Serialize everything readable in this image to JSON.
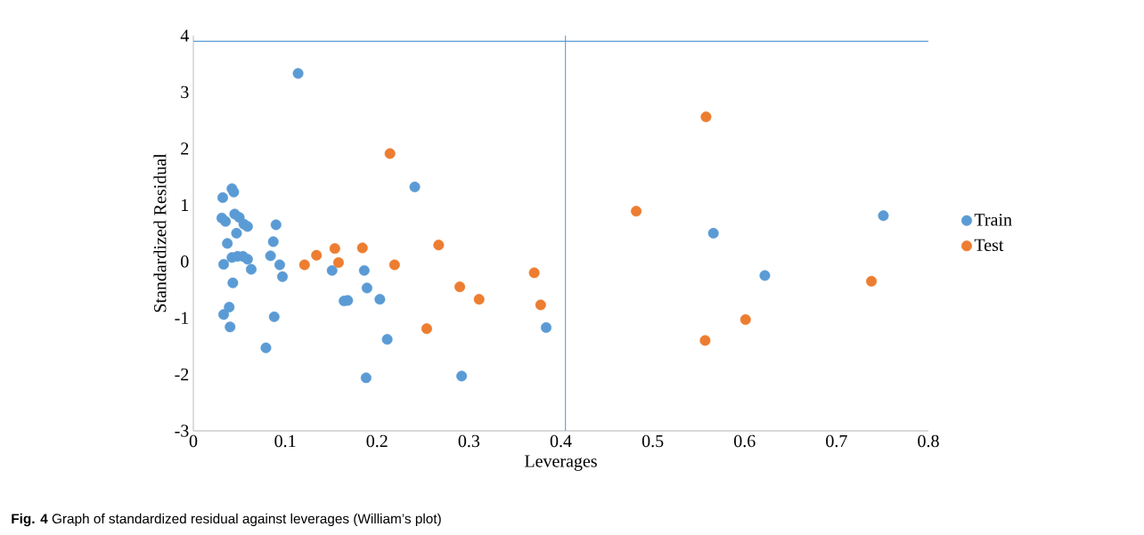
{
  "chart_data": {
    "type": "scatter",
    "xlabel": "Leverages",
    "ylabel": "Standardized Residual",
    "legend": "right",
    "grid": false,
    "xlim": [
      0,
      0.8
    ],
    "ylim": [
      -3,
      4
    ],
    "xticks": [
      0,
      0.1,
      0.2,
      0.3,
      0.4,
      0.5,
      0.6,
      0.7,
      0.8
    ],
    "yticks": [
      -3,
      -2,
      -1,
      0,
      1,
      2,
      3,
      4
    ],
    "series": [
      {
        "name": "Train",
        "color": "#5b9bd5",
        "x": [
          0.114,
          0.042,
          0.044,
          0.032,
          0.045,
          0.05,
          0.031,
          0.035,
          0.055,
          0.059,
          0.09,
          0.047,
          0.087,
          0.037,
          0.042,
          0.048,
          0.054,
          0.059,
          0.084,
          0.033,
          0.094,
          0.063,
          0.097,
          0.151,
          0.186,
          0.043,
          0.189,
          0.164,
          0.168,
          0.203,
          0.039,
          0.033,
          0.088,
          0.04,
          0.211,
          0.079,
          0.188,
          0.241,
          0.292,
          0.384,
          0.566,
          0.622,
          0.751
        ],
        "values": [
          3.33,
          1.29,
          1.23,
          1.13,
          0.84,
          0.78,
          0.77,
          0.71,
          0.66,
          0.62,
          0.65,
          0.5,
          0.35,
          0.32,
          0.07,
          0.09,
          0.09,
          0.04,
          0.1,
          -0.05,
          -0.06,
          -0.14,
          -0.27,
          -0.16,
          -0.16,
          -0.38,
          -0.47,
          -0.7,
          -0.69,
          -0.67,
          -0.81,
          -0.94,
          -0.98,
          -1.16,
          -1.38,
          -1.53,
          -2.06,
          1.32,
          -2.03,
          -1.17,
          0.5,
          -0.25,
          0.81
        ]
      },
      {
        "name": "Test",
        "color": "#ed7d31",
        "x": [
          0.214,
          0.121,
          0.134,
          0.154,
          0.158,
          0.184,
          0.219,
          0.267,
          0.29,
          0.311,
          0.254,
          0.371,
          0.378,
          0.558,
          0.482,
          0.738,
          0.601,
          0.557
        ],
        "values": [
          1.91,
          -0.06,
          0.11,
          0.23,
          -0.02,
          0.24,
          -0.06,
          0.29,
          -0.45,
          -0.67,
          -1.19,
          -0.2,
          -0.77,
          2.56,
          0.89,
          -0.35,
          -1.03,
          -1.4
        ]
      }
    ],
    "ref_lines": [
      {
        "axis": "y",
        "value": 3.9,
        "color": "#5b9bd5"
      },
      {
        "axis": "x",
        "value": 0.405,
        "color": "#5b9bd5"
      }
    ],
    "annotations": [
      "**Fig. 4** Graph of standardized residual against leverages (William’s plot)"
    ]
  }
}
